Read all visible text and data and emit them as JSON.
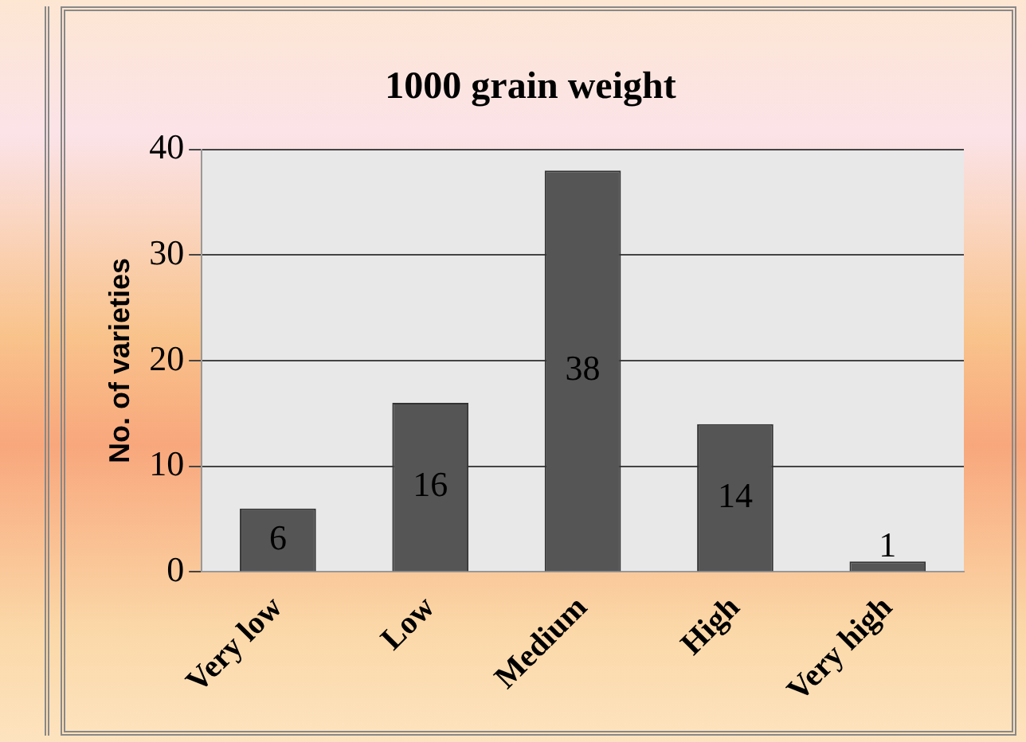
{
  "chart_data": {
    "type": "bar",
    "title": "1000 grain weight",
    "ylabel": "No. of varieties",
    "categories": [
      "Very low",
      "Low",
      "Medium",
      "High",
      "Very high"
    ],
    "values": [
      6,
      16,
      38,
      14,
      1
    ],
    "color": "#555555",
    "ylim": [
      0,
      40
    ],
    "yticks": [
      0,
      10,
      20,
      30,
      40
    ],
    "grid": "y",
    "data_labels": true,
    "legend": false
  }
}
